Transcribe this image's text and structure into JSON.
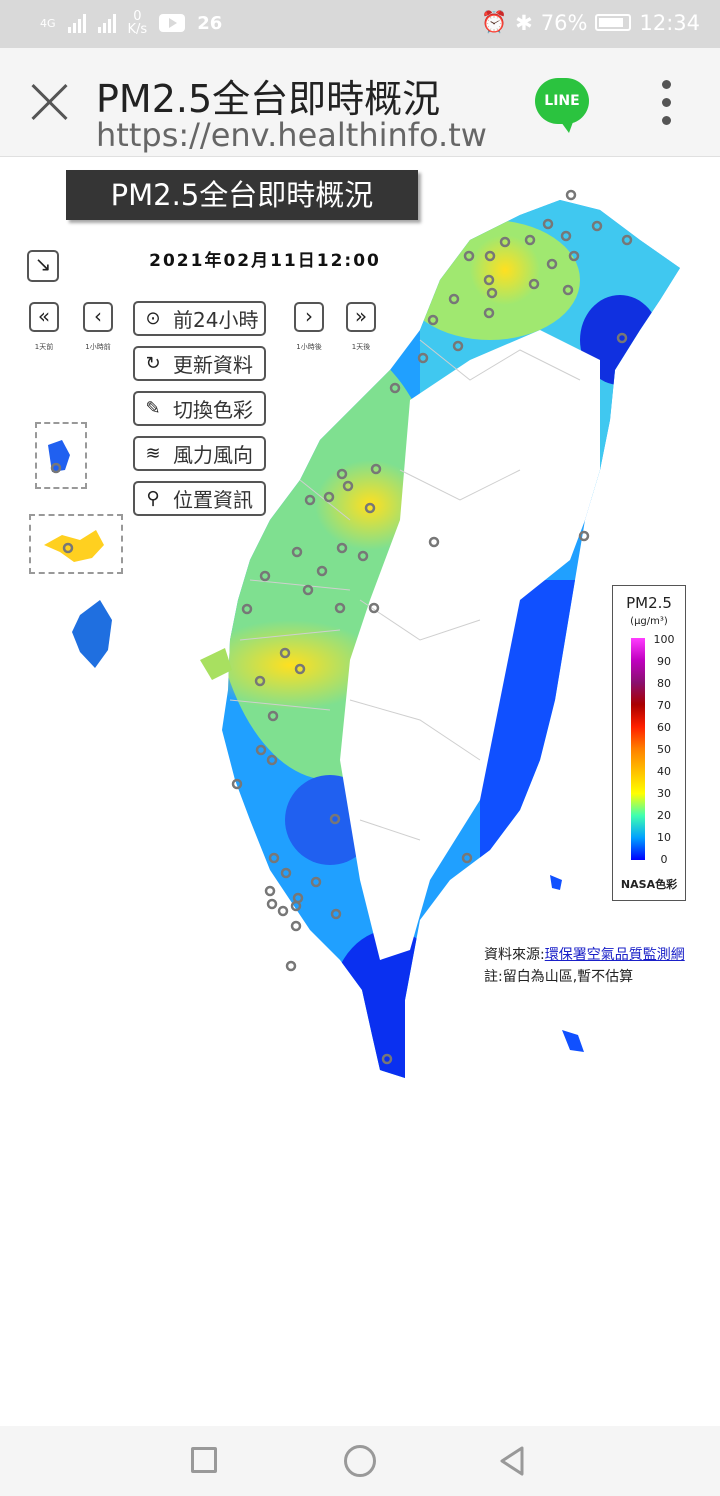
{
  "status_bar": {
    "network_type": "4G",
    "speed_value": "0",
    "speed_unit": "K/s",
    "notification_count": "26",
    "battery": "76%",
    "time": "12:34"
  },
  "browser": {
    "title": "PM2.5全台即時概況",
    "url": "https://env.healthinfo.tw",
    "line_label": "LINE"
  },
  "page": {
    "title": "PM2.5全台即時概況",
    "datetime": "2021年02月11日12:00"
  },
  "nav": {
    "prev_day_label": "1天前",
    "prev_hour_label": "1小時前",
    "next_hour_label": "1小時後",
    "next_day_label": "1天後"
  },
  "controls": [
    {
      "label": "前24小時",
      "icon": "play-circle-icon"
    },
    {
      "label": "更新資料",
      "icon": "refresh-icon"
    },
    {
      "label": "切換色彩",
      "icon": "eyedropper-icon"
    },
    {
      "label": "風力風向",
      "icon": "wind-icon"
    },
    {
      "label": "位置資訊",
      "icon": "location-pin-icon"
    }
  ],
  "legend": {
    "title": "PM2.5",
    "unit": "(μg/m³)",
    "ticks": [
      "100",
      "90",
      "80",
      "70",
      "60",
      "50",
      "40",
      "30",
      "20",
      "10",
      "0"
    ],
    "footer": "NASA色彩"
  },
  "source": {
    "prefix": "資料來源:",
    "link_text": "環保署空氣品質監測網",
    "note": "註:留白為山區,暫不估算"
  },
  "colors": {
    "low": "#0033ff",
    "mid_low": "#20b0ff",
    "mid": "#7fe87f",
    "high": "#ffe020"
  }
}
